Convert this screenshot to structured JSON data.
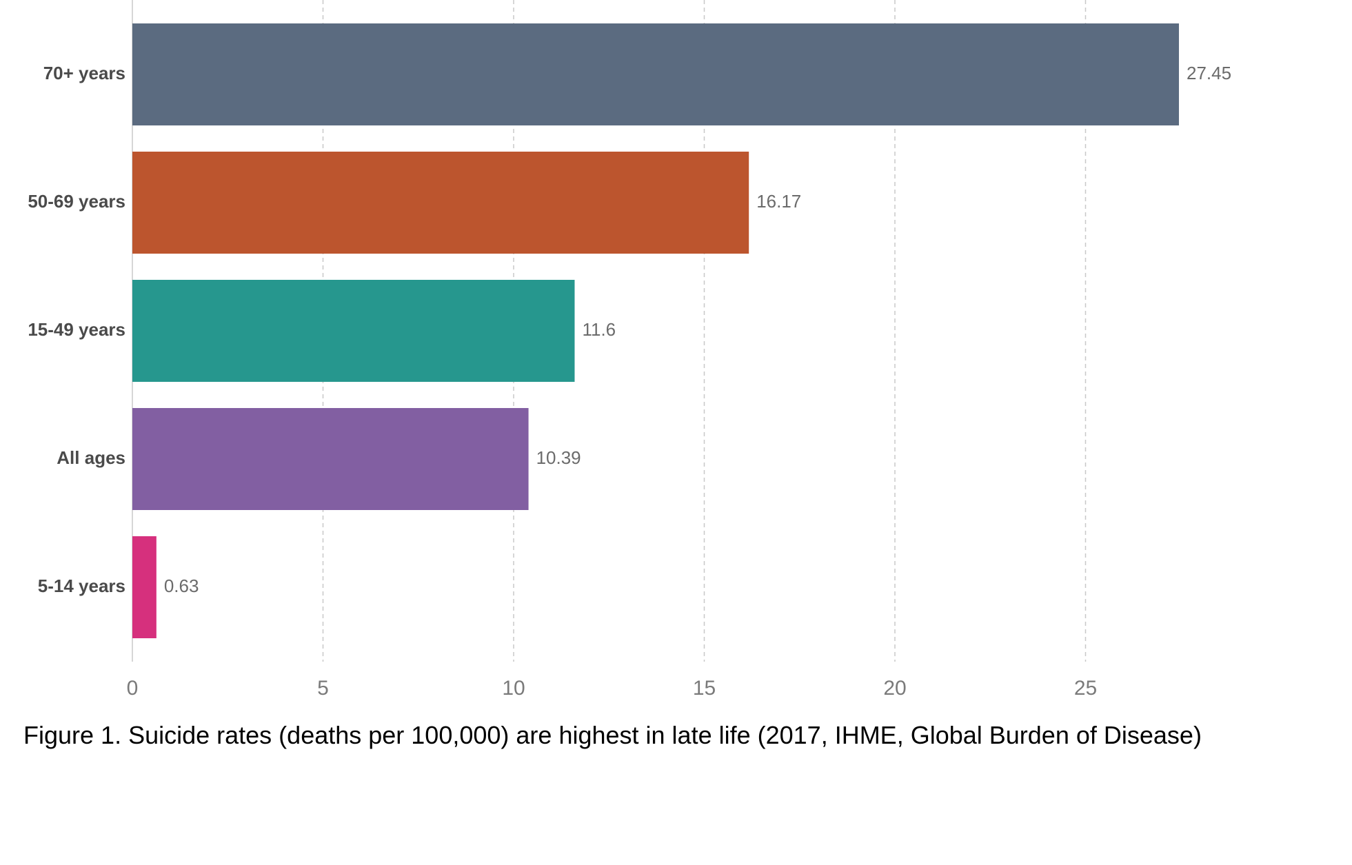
{
  "chart_data": {
    "type": "bar",
    "orientation": "horizontal",
    "categories": [
      "70+ years",
      "50-69 years",
      "15-49 years",
      "All ages",
      "5-14 years"
    ],
    "values": [
      27.45,
      16.17,
      11.6,
      10.39,
      0.63
    ],
    "value_labels": [
      "27.45",
      "16.17",
      "11.6",
      "10.39",
      "0.63"
    ],
    "colors": [
      "#5b6b80",
      "#bc552e",
      "#26978e",
      "#825fa2",
      "#d6307d"
    ],
    "xlim": [
      0,
      30
    ],
    "xticks": [
      0,
      5,
      10,
      15,
      20,
      25
    ],
    "xlabel": "",
    "ylabel": "",
    "grid": "x-dashed",
    "legend": "none"
  },
  "caption": "Figure 1. Suicide rates (deaths per 100,000) are highest in late life (2017, IHME, Global Burden of Disease)"
}
